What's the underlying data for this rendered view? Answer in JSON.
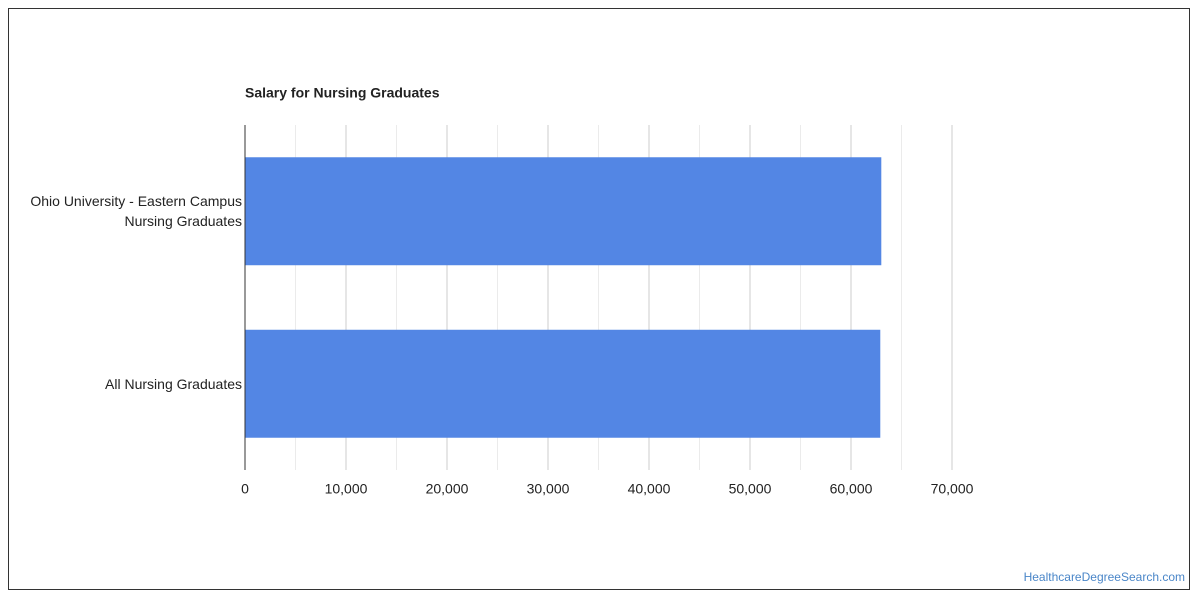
{
  "chart_data": {
    "type": "bar",
    "orientation": "horizontal",
    "title": "Salary for Nursing Graduates",
    "categories": [
      "Ohio University - Eastern Campus Nursing Graduates",
      "All Nursing Graduates"
    ],
    "values": [
      63000,
      62900
    ],
    "color": "#5386e4",
    "xlim": [
      0,
      70000
    ],
    "xticks": [
      0,
      {
        "value": 10000,
        "label": "10,000"
      },
      {
        "value": 20000,
        "label": "20,000"
      },
      {
        "value": 30000,
        "label": "30,000"
      },
      {
        "value": 40000,
        "label": "40,000"
      },
      {
        "value": 50000,
        "label": "50,000"
      },
      {
        "value": 60000,
        "label": "60,000"
      },
      {
        "value": 70000,
        "label": "70,000"
      }
    ],
    "minor_xticks": [
      5000,
      15000,
      25000,
      35000,
      45000,
      55000,
      65000
    ],
    "grid": true,
    "source": "HealthcareDegreeSearch.com"
  }
}
